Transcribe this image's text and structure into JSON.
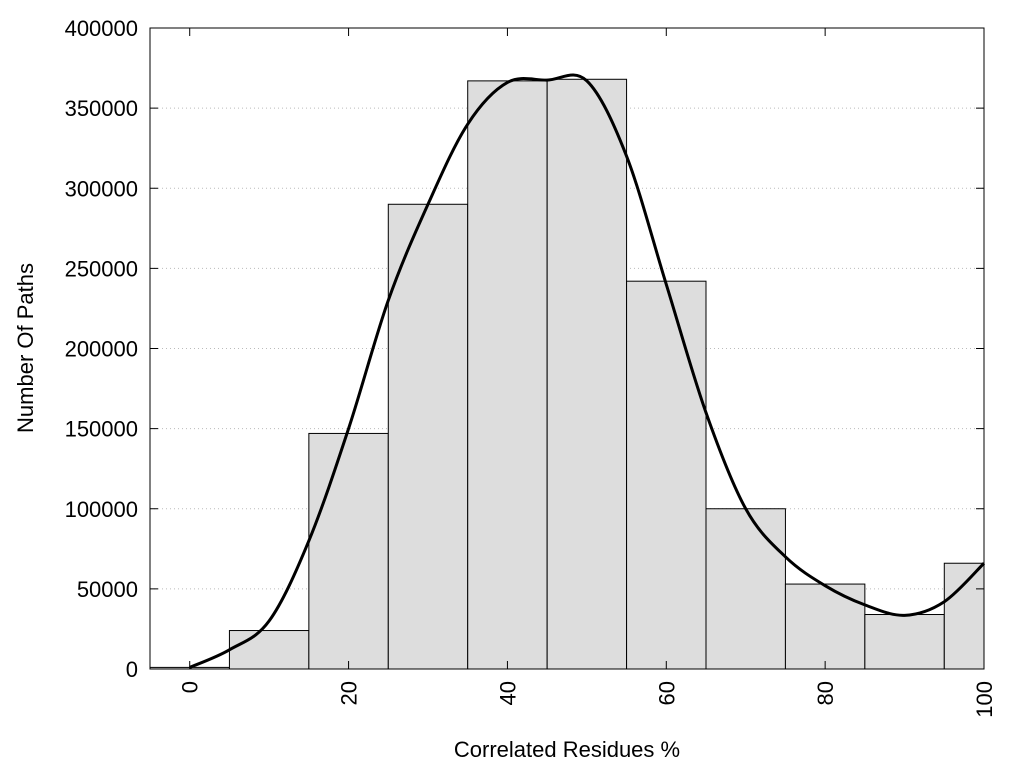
{
  "chart_data": {
    "type": "bar",
    "xlabel": "Correlated Residues %",
    "ylabel": "Number Of Paths",
    "xlim": [
      -5,
      100
    ],
    "ylim": [
      0,
      400000
    ],
    "x_ticks": [
      0,
      20,
      40,
      60,
      80,
      100
    ],
    "y_ticks": [
      0,
      50000,
      100000,
      150000,
      200000,
      250000,
      300000,
      350000,
      400000
    ],
    "x_tick_labels": [
      "0",
      "20",
      "40",
      "60",
      "80",
      "100"
    ],
    "y_tick_labels": [
      "0",
      "50000",
      "100000",
      "150000",
      "200000",
      "250000",
      "300000",
      "350000",
      "400000"
    ],
    "grid": "y-dotted",
    "bar_width": 10,
    "x": [
      0,
      10,
      20,
      30,
      40,
      50,
      60,
      70,
      80,
      90,
      100
    ],
    "values": [
      1000,
      24000,
      147000,
      290000,
      367000,
      368000,
      242000,
      100000,
      53000,
      34000,
      66000
    ],
    "bar_color": "#dddddd",
    "line_color": "#000000",
    "curve": {
      "x": [
        0,
        5,
        10,
        15,
        20,
        25,
        30,
        35,
        40,
        45,
        50,
        55,
        60,
        65,
        70,
        75,
        80,
        85,
        90,
        95,
        100
      ],
      "y": [
        1000,
        12000,
        30000,
        80000,
        150000,
        230000,
        290000,
        340000,
        366000,
        367500,
        367000,
        320000,
        240000,
        160000,
        100000,
        70000,
        52000,
        40000,
        33500,
        42000,
        66000
      ]
    }
  }
}
